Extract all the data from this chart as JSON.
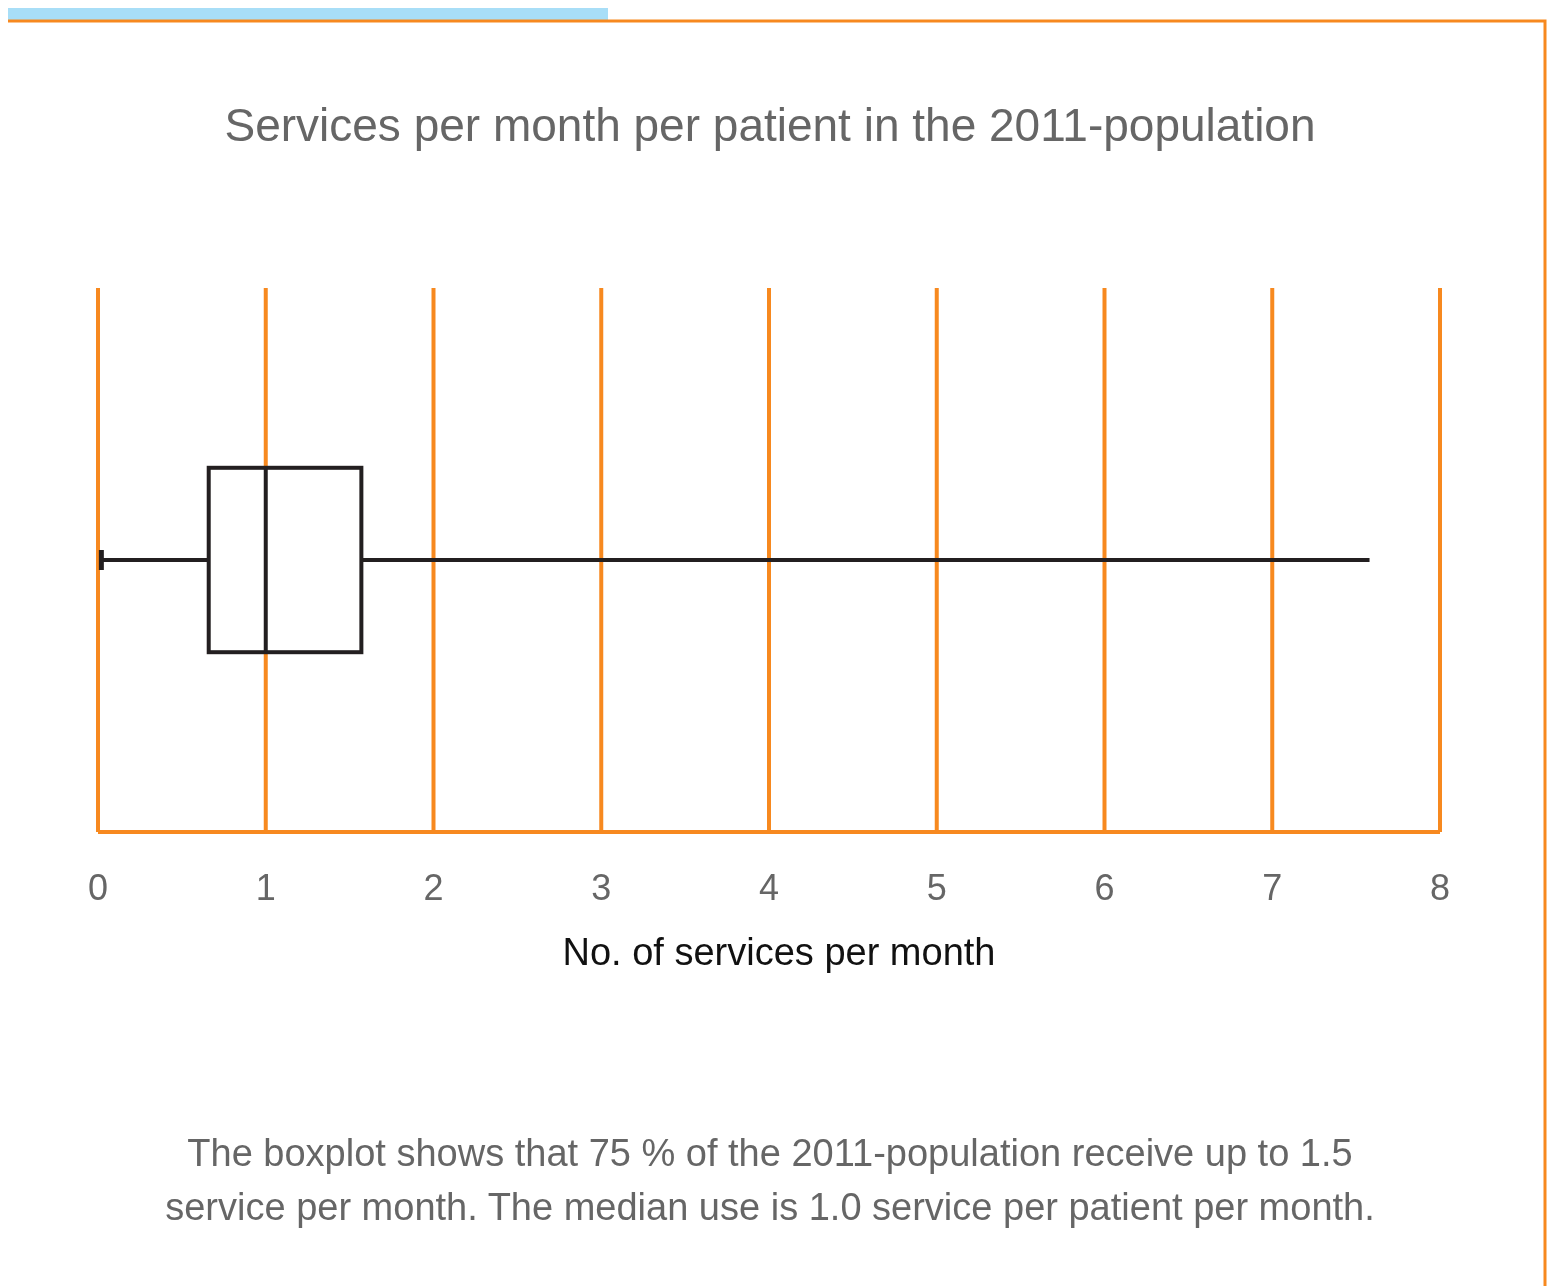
{
  "chart_data": {
    "type": "box",
    "orientation": "horizontal",
    "title": "Services per month per patient in the 2011-population",
    "xlabel": "No. of services per month",
    "categories": [
      null
    ],
    "series": [
      {
        "color": "#231f20",
        "boxes": [
          {
            "low": 0.02,
            "q1": 0.66,
            "median": 1.0,
            "q3": 1.57,
            "high": 7.58
          }
        ]
      }
    ],
    "xlim": [
      0,
      8
    ],
    "xticks": [
      0,
      1,
      2,
      3,
      4,
      5,
      6,
      7,
      8
    ],
    "grid": "x",
    "annotations": [
      "The boxplot shows that 75 % of the 2011-population receive up to 1.5 service per month. The median use is 1.0 service per patient per month."
    ]
  }
}
